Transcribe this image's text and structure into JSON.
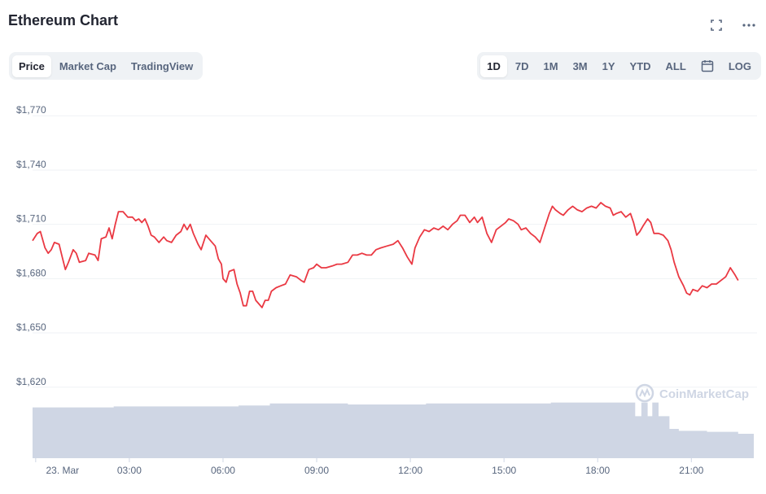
{
  "header": {
    "title": "Ethereum Chart"
  },
  "tabs": [
    {
      "label": "Price",
      "active": true
    },
    {
      "label": "Market Cap",
      "active": false
    },
    {
      "label": "TradingView",
      "active": false
    }
  ],
  "ranges": [
    {
      "label": "1D",
      "active": true
    },
    {
      "label": "7D",
      "active": false
    },
    {
      "label": "1M",
      "active": false
    },
    {
      "label": "3M",
      "active": false
    },
    {
      "label": "1Y",
      "active": false
    },
    {
      "label": "YTD",
      "active": false
    },
    {
      "label": "ALL",
      "active": false
    }
  ],
  "log_label": "LOG",
  "icons": {
    "fullscreen": "fullscreen-icon",
    "more": "more-icon",
    "calendar": "calendar-icon"
  },
  "watermark": "CoinMarketCap",
  "colors": {
    "line": "#ea3943",
    "volume": "#cfd6e4",
    "grid": "#eff2f5",
    "text": "#58667e"
  },
  "chart_data": {
    "type": "line",
    "title": "Ethereum Chart",
    "ylim": [
      1610,
      1780
    ],
    "yticks": [
      1620,
      1650,
      1680,
      1710,
      1740,
      1770
    ],
    "ytick_labels": [
      "$1,620",
      "$1,650",
      "$1,680",
      "$1,710",
      "$1,740",
      "$1,770"
    ],
    "xlim": [
      -0.1,
      23.0
    ],
    "xticks": [
      0,
      3,
      6,
      9,
      12,
      15,
      18,
      21
    ],
    "xtick_labels": [
      "23. Mar",
      "03:00",
      "06:00",
      "09:00",
      "12:00",
      "15:00",
      "18:00",
      "21:00"
    ],
    "grid": true,
    "series": [
      {
        "values": [
          [
            -0.1,
            1701
          ],
          [
            0.05,
            1705
          ],
          [
            0.15,
            1706
          ],
          [
            0.3,
            1697
          ],
          [
            0.4,
            1694
          ],
          [
            0.5,
            1696
          ],
          [
            0.6,
            1700
          ],
          [
            0.75,
            1699
          ],
          [
            0.85,
            1692
          ],
          [
            0.95,
            1685
          ],
          [
            1.05,
            1689
          ],
          [
            1.2,
            1696
          ],
          [
            1.3,
            1694
          ],
          [
            1.4,
            1689
          ],
          [
            1.6,
            1690
          ],
          [
            1.7,
            1694
          ],
          [
            1.9,
            1693
          ],
          [
            2.0,
            1690
          ],
          [
            2.1,
            1702
          ],
          [
            2.25,
            1703
          ],
          [
            2.35,
            1708
          ],
          [
            2.45,
            1702
          ],
          [
            2.55,
            1710
          ],
          [
            2.65,
            1717
          ],
          [
            2.8,
            1717
          ],
          [
            2.95,
            1714
          ],
          [
            3.1,
            1714
          ],
          [
            3.2,
            1712
          ],
          [
            3.3,
            1713
          ],
          [
            3.4,
            1711
          ],
          [
            3.5,
            1713
          ],
          [
            3.6,
            1709
          ],
          [
            3.7,
            1704
          ],
          [
            3.8,
            1703
          ],
          [
            3.95,
            1700
          ],
          [
            4.1,
            1703
          ],
          [
            4.2,
            1701
          ],
          [
            4.35,
            1700
          ],
          [
            4.5,
            1704
          ],
          [
            4.65,
            1706
          ],
          [
            4.75,
            1710
          ],
          [
            4.85,
            1707
          ],
          [
            4.95,
            1710
          ],
          [
            5.05,
            1705
          ],
          [
            5.2,
            1699
          ],
          [
            5.3,
            1696
          ],
          [
            5.45,
            1704
          ],
          [
            5.6,
            1701
          ],
          [
            5.75,
            1698
          ],
          [
            5.85,
            1691
          ],
          [
            5.95,
            1688
          ],
          [
            6.0,
            1680
          ],
          [
            6.1,
            1678
          ],
          [
            6.2,
            1684
          ],
          [
            6.35,
            1685
          ],
          [
            6.45,
            1677
          ],
          [
            6.55,
            1672
          ],
          [
            6.65,
            1665
          ],
          [
            6.75,
            1665
          ],
          [
            6.85,
            1673
          ],
          [
            6.95,
            1673
          ],
          [
            7.05,
            1668
          ],
          [
            7.15,
            1666
          ],
          [
            7.25,
            1664
          ],
          [
            7.35,
            1668
          ],
          [
            7.45,
            1668
          ],
          [
            7.55,
            1673
          ],
          [
            7.7,
            1675
          ],
          [
            7.85,
            1676
          ],
          [
            8.0,
            1677
          ],
          [
            8.15,
            1682
          ],
          [
            8.35,
            1681
          ],
          [
            8.5,
            1679
          ],
          [
            8.6,
            1678
          ],
          [
            8.75,
            1685
          ],
          [
            8.9,
            1686
          ],
          [
            9.0,
            1688
          ],
          [
            9.15,
            1686
          ],
          [
            9.3,
            1686
          ],
          [
            9.5,
            1687
          ],
          [
            9.65,
            1688
          ],
          [
            9.8,
            1688
          ],
          [
            10.0,
            1689
          ],
          [
            10.15,
            1693
          ],
          [
            10.3,
            1693
          ],
          [
            10.45,
            1694
          ],
          [
            10.6,
            1693
          ],
          [
            10.75,
            1693
          ],
          [
            10.9,
            1696
          ],
          [
            11.05,
            1697
          ],
          [
            11.25,
            1698
          ],
          [
            11.45,
            1699
          ],
          [
            11.6,
            1701
          ],
          [
            11.75,
            1697
          ],
          [
            11.9,
            1692
          ],
          [
            12.05,
            1688
          ],
          [
            12.15,
            1697
          ],
          [
            12.3,
            1703
          ],
          [
            12.45,
            1707
          ],
          [
            12.6,
            1706
          ],
          [
            12.75,
            1708
          ],
          [
            12.9,
            1707
          ],
          [
            13.05,
            1709
          ],
          [
            13.2,
            1707
          ],
          [
            13.35,
            1710
          ],
          [
            13.5,
            1712
          ],
          [
            13.6,
            1715
          ],
          [
            13.75,
            1715
          ],
          [
            13.9,
            1711
          ],
          [
            14.05,
            1714
          ],
          [
            14.15,
            1711
          ],
          [
            14.3,
            1714
          ],
          [
            14.45,
            1705
          ],
          [
            14.6,
            1700
          ],
          [
            14.75,
            1707
          ],
          [
            14.9,
            1709
          ],
          [
            15.05,
            1711
          ],
          [
            15.15,
            1713
          ],
          [
            15.3,
            1712
          ],
          [
            15.45,
            1710
          ],
          [
            15.55,
            1707
          ],
          [
            15.7,
            1708
          ],
          [
            15.85,
            1705
          ],
          [
            16.0,
            1703
          ],
          [
            16.15,
            1700
          ],
          [
            16.3,
            1708
          ],
          [
            16.45,
            1716
          ],
          [
            16.55,
            1720
          ],
          [
            16.65,
            1718
          ],
          [
            16.8,
            1716
          ],
          [
            16.9,
            1715
          ],
          [
            17.05,
            1718
          ],
          [
            17.2,
            1720
          ],
          [
            17.35,
            1718
          ],
          [
            17.5,
            1717
          ],
          [
            17.65,
            1719
          ],
          [
            17.8,
            1720
          ],
          [
            17.95,
            1719
          ],
          [
            18.1,
            1722
          ],
          [
            18.25,
            1720
          ],
          [
            18.4,
            1719
          ],
          [
            18.5,
            1715
          ],
          [
            18.6,
            1716
          ],
          [
            18.75,
            1717
          ],
          [
            18.9,
            1714
          ],
          [
            19.05,
            1716
          ],
          [
            19.15,
            1711
          ],
          [
            19.25,
            1704
          ],
          [
            19.35,
            1706
          ],
          [
            19.45,
            1709
          ],
          [
            19.6,
            1713
          ],
          [
            19.7,
            1711
          ],
          [
            19.8,
            1705
          ],
          [
            19.95,
            1705
          ],
          [
            20.1,
            1704
          ],
          [
            20.25,
            1701
          ],
          [
            20.35,
            1696
          ],
          [
            20.45,
            1689
          ],
          [
            20.6,
            1681
          ],
          [
            20.75,
            1676
          ],
          [
            20.85,
            1672
          ],
          [
            20.95,
            1671
          ],
          [
            21.05,
            1674
          ],
          [
            21.2,
            1673
          ],
          [
            21.35,
            1676
          ],
          [
            21.5,
            1675
          ],
          [
            21.65,
            1677
          ],
          [
            21.8,
            1677
          ],
          [
            21.95,
            1679
          ],
          [
            22.1,
            1681
          ],
          [
            22.25,
            1686
          ],
          [
            22.4,
            1682
          ],
          [
            22.5,
            1679
          ]
        ]
      }
    ],
    "volume": {
      "relative_heights": [
        [
          -0.1,
          0.52
        ],
        [
          2.5,
          0.53
        ],
        [
          5.0,
          0.53
        ],
        [
          6.5,
          0.54
        ],
        [
          7.5,
          0.56
        ],
        [
          10.0,
          0.55
        ],
        [
          12.5,
          0.56
        ],
        [
          14.0,
          0.56
        ],
        [
          16.5,
          0.57
        ],
        [
          19.0,
          0.57
        ],
        [
          19.2,
          0.43
        ],
        [
          19.4,
          0.57
        ],
        [
          19.6,
          0.43
        ],
        [
          19.75,
          0.57
        ],
        [
          19.95,
          0.43
        ],
        [
          20.15,
          0.43
        ],
        [
          20.3,
          0.3
        ],
        [
          20.6,
          0.28
        ],
        [
          21.5,
          0.27
        ],
        [
          22.5,
          0.25
        ]
      ]
    }
  }
}
